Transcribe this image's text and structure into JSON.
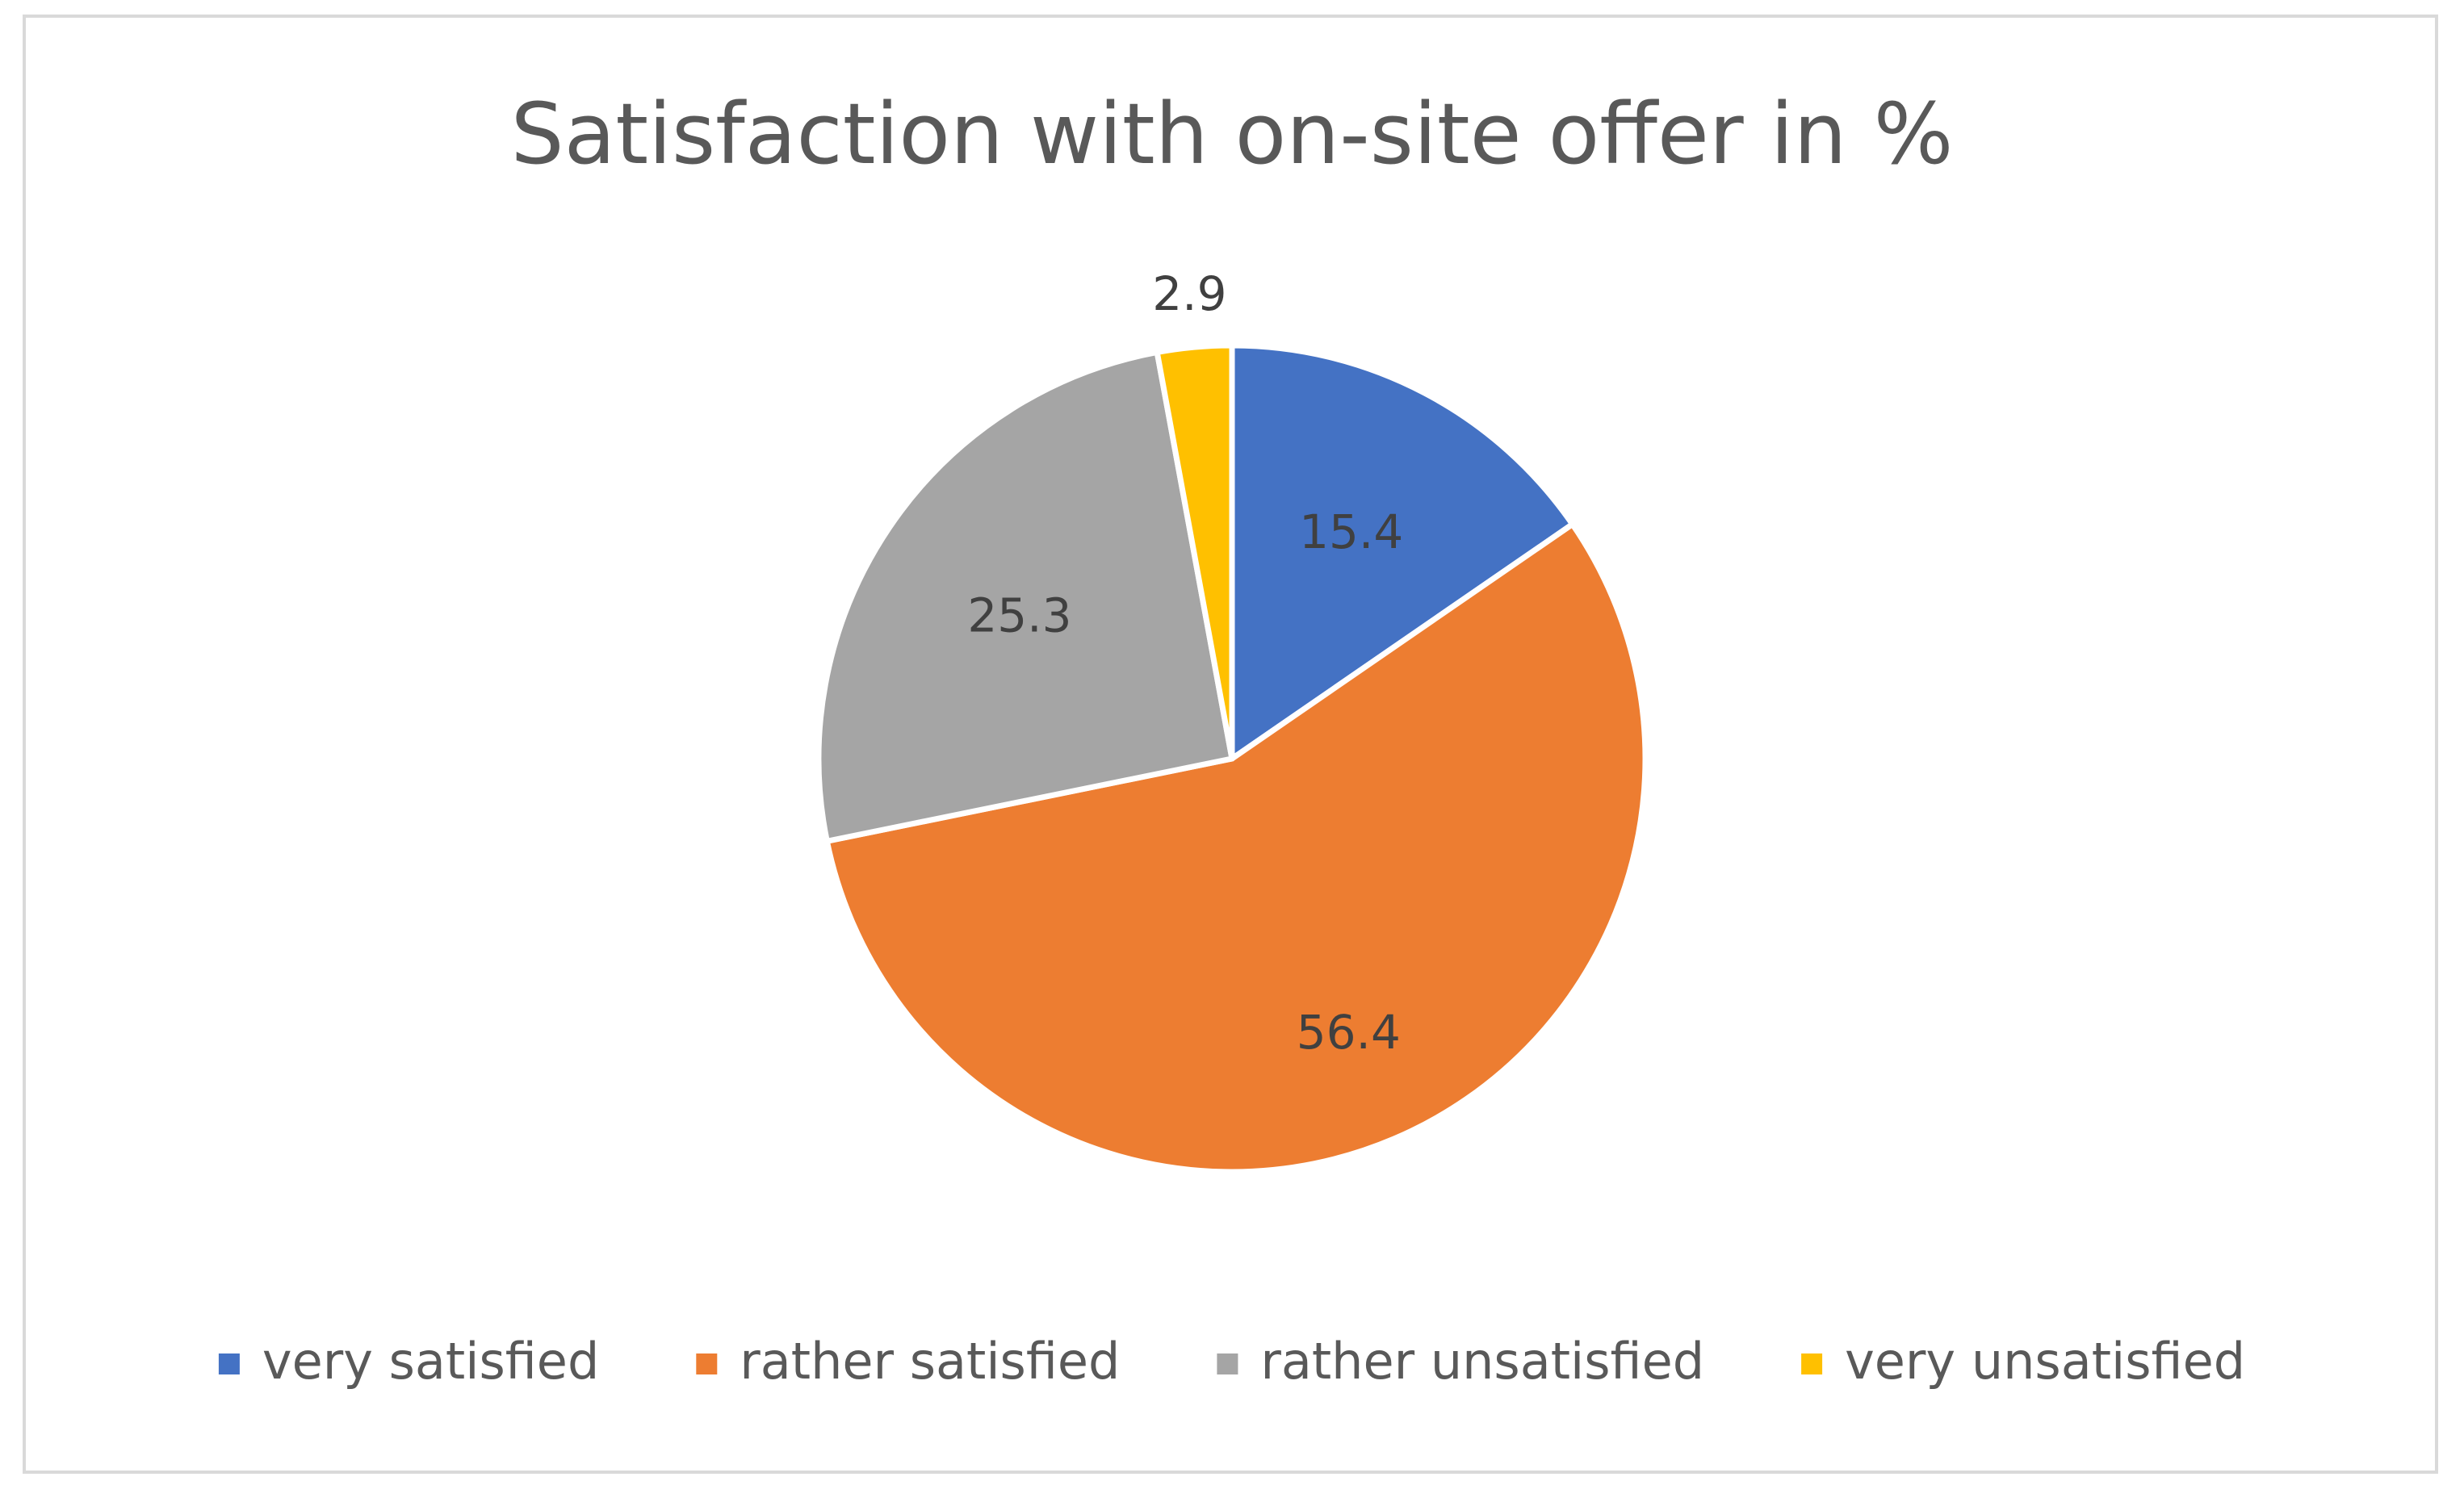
{
  "chart_data": {
    "type": "pie",
    "title": "Satisfaction with on-site offer in %",
    "categories": [
      "very satisfied",
      "rather satisfied",
      "rather unsatisfied",
      "very unsatisfied"
    ],
    "values": [
      15.4,
      56.4,
      25.3,
      2.9
    ],
    "data_labels": [
      "15.4",
      "56.4",
      "25.3",
      "2.9"
    ],
    "colors": [
      "#4472C4",
      "#ED7D31",
      "#A5A5A5",
      "#FFC000"
    ],
    "start_angle_deg": 0,
    "direction": "clockwise",
    "legend_position": "bottom"
  }
}
